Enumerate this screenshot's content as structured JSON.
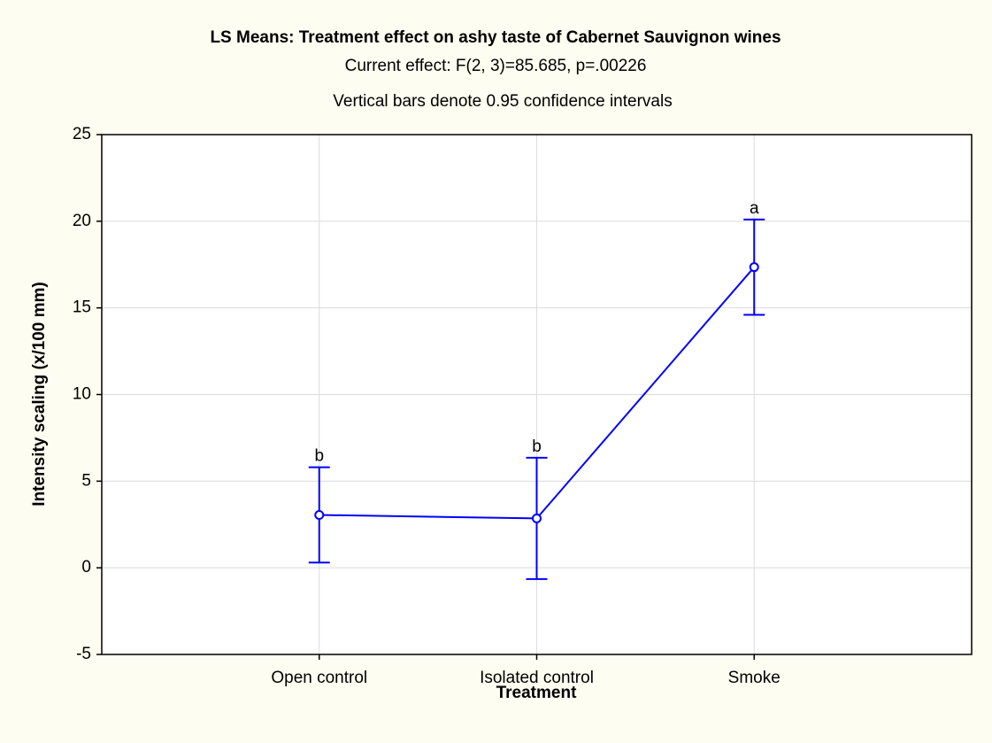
{
  "chart_data": {
    "type": "line",
    "title": "LS Means: Treatment effect on ashy taste of Cabernet Sauvignon wines",
    "subtitle": "Current effect: F(2, 3)=85.685, p=.00226",
    "note": "Vertical bars denote 0.95 confidence intervals",
    "x_label": "Treatment",
    "y_label": "Intensity scaling (x/100 mm)",
    "categories": [
      "Open control",
      "Isolated control",
      "Smoke"
    ],
    "series": [
      {
        "color": "#0000ff",
        "values": [
          3.05,
          2.85,
          17.35
        ],
        "errors": [
          2.75,
          3.5,
          2.75
        ],
        "point_labels": [
          "b",
          "b",
          "a"
        ]
      }
    ],
    "ylim": [
      -5,
      25
    ],
    "yticks": [
      -5,
      0,
      5,
      10,
      15,
      20,
      25
    ],
    "grid": true
  }
}
